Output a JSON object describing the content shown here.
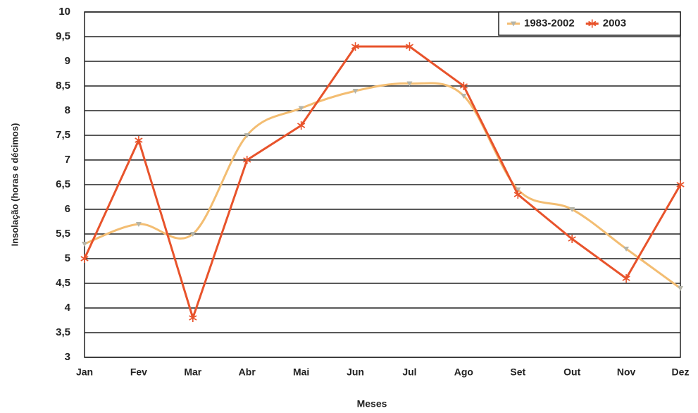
{
  "chart_data": {
    "type": "line",
    "x_label": "Meses",
    "y_label": "Insolação (horas e décimos)",
    "categories": [
      "Jan",
      "Fev",
      "Mar",
      "Abr",
      "Mai",
      "Jun",
      "Jul",
      "Ago",
      "Set",
      "Out",
      "Nov",
      "Dez"
    ],
    "series": [
      {
        "name": "1983-2002",
        "color": "#f3bd72",
        "marker_color": "#b4b4a8",
        "marker": "triangle",
        "smooth": true,
        "values": [
          5.3,
          5.7,
          5.5,
          7.5,
          8.05,
          8.4,
          8.55,
          8.3,
          6.4,
          6.0,
          5.2,
          4.4
        ]
      },
      {
        "name": "2003",
        "color": "#e8532b",
        "marker_color": "#e8532b",
        "marker": "asterisk",
        "smooth": false,
        "values": [
          5.0,
          7.4,
          3.8,
          7.0,
          7.7,
          9.3,
          9.3,
          8.5,
          6.3,
          5.4,
          4.6,
          6.5
        ]
      }
    ],
    "ylim": [
      3,
      10
    ],
    "yticks": [
      3,
      {
        "value": 3.5,
        "label": "3,5"
      },
      4,
      {
        "value": 4.5,
        "label": "4,5"
      },
      5,
      {
        "value": 5.5,
        "label": "5,5"
      },
      6,
      {
        "value": 6.5,
        "label": "6,5"
      },
      7,
      {
        "value": 7.5,
        "label": "7,5"
      },
      8,
      {
        "value": 8.5,
        "label": "8,5"
      },
      9,
      {
        "value": 9.5,
        "label": "9,5"
      },
      10
    ],
    "grid": true,
    "legend": "top-right"
  }
}
